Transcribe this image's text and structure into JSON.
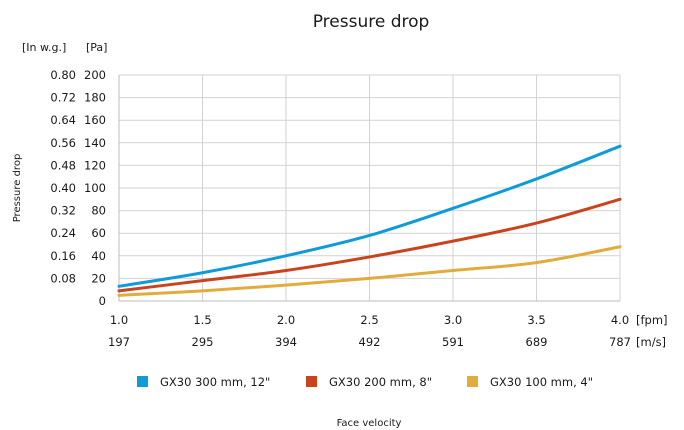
{
  "chart_data": {
    "type": "line",
    "title": "Pressure drop",
    "ylabel": "Pressure drop",
    "xlabel": "Face velocity",
    "y_units": [
      "[In w.g.]",
      "[Pa]"
    ],
    "x_units": [
      "[fpm]",
      "[m/s]"
    ],
    "ylim": [
      0,
      200
    ],
    "xlim": [
      1.0,
      4.0
    ],
    "y_ticks_pa": [
      "0",
      "20",
      "40",
      "60",
      "80",
      "100",
      "120",
      "140",
      "160",
      "180",
      "200"
    ],
    "y_ticks_inwg": [
      "",
      "0.08",
      "0.16",
      "0.24",
      "0.32",
      "0.40",
      "0.48",
      "0.56",
      "0.64",
      "0.72",
      "0.80"
    ],
    "x_ticks_primary": [
      "1.0",
      "1.5",
      "2.0",
      "2.5",
      "3.0",
      "3.5",
      "4.0"
    ],
    "x_ticks_secondary": [
      "197",
      "295",
      "394",
      "492",
      "591",
      "689",
      "787"
    ],
    "grid": true,
    "legend_position": "bottom",
    "x": [
      1.0,
      1.5,
      2.0,
      2.5,
      3.0,
      3.5,
      4.0
    ],
    "series": [
      {
        "name": "GX30 300 mm, 12\"",
        "color": "#0f9bd7",
        "values": [
          13,
          25,
          40,
          58,
          82,
          108,
          137
        ]
      },
      {
        "name": "GX30 200 mm, 8\"",
        "color": "#c9431c",
        "values": [
          9,
          18,
          27,
          39,
          53,
          69,
          90
        ]
      },
      {
        "name": "GX30 100 mm, 4\"",
        "color": "#e1ac3c",
        "values": [
          5,
          9,
          14,
          20,
          27,
          34,
          48
        ]
      }
    ]
  }
}
